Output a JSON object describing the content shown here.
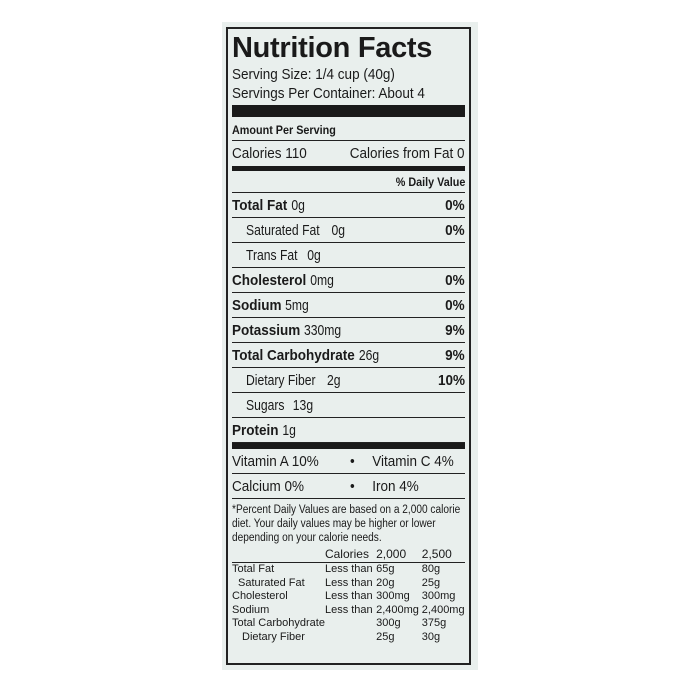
{
  "title": "Nutrition Facts",
  "serving_size": "Serving Size: 1/4 cup (40g)",
  "servings_per_container": "Servings Per Container: About 4",
  "amount_per_serving": "Amount Per Serving",
  "calories": "Calories 110",
  "calories_from_fat": "Calories from Fat 0",
  "daily_value_header": "% Daily Value",
  "nutrients": [
    {
      "name": "Total Fat",
      "amount": "0g",
      "dv": "0%",
      "bold": true,
      "indent": false
    },
    {
      "name": "Saturated Fat",
      "amount": "0g",
      "dv": "0%",
      "bold": false,
      "indent": true
    },
    {
      "name": "Trans Fat",
      "amount": "0g",
      "dv": "",
      "bold": false,
      "indent": true
    },
    {
      "name": "Cholesterol",
      "amount": "0mg",
      "dv": "0%",
      "bold": true,
      "indent": false
    },
    {
      "name": "Sodium",
      "amount": "5mg",
      "dv": "0%",
      "bold": true,
      "indent": false
    },
    {
      "name": "Potassium",
      "amount": "330mg",
      "dv": "9%",
      "bold": true,
      "indent": false
    },
    {
      "name": "Total Carbohydrate",
      "amount": "26g",
      "dv": "9%",
      "bold": true,
      "indent": false
    },
    {
      "name": "Dietary Fiber",
      "amount": "2g",
      "dv": "10%",
      "bold": false,
      "indent": true
    },
    {
      "name": "Sugars",
      "amount": "13g",
      "dv": "",
      "bold": false,
      "indent": true
    },
    {
      "name": "Protein",
      "amount": "1g",
      "dv": "",
      "bold": true,
      "indent": false
    }
  ],
  "vitamins": [
    {
      "left": "Vitamin A 10%",
      "right": "Vitamin C 4%"
    },
    {
      "left": "Calcium 0%",
      "right": "Iron 4%"
    }
  ],
  "bullet": "•",
  "footnote": "*Percent Daily Values are based on a 2,000 calorie diet. Your daily values may be higher or lower depending on your calorie needs.",
  "dv_table": {
    "header": [
      "",
      "Calories",
      "2,000",
      "2,500"
    ],
    "rows": [
      [
        "Total Fat",
        "Less than",
        "65g",
        "80g"
      ],
      [
        "Saturated Fat",
        "Less than",
        "20g",
        "25g"
      ],
      [
        "Cholesterol",
        "Less than",
        "300mg",
        "300mg"
      ],
      [
        "Sodium",
        "Less than",
        "2,400mg",
        "2,400mg"
      ],
      [
        "Total Carbohydrate",
        "",
        "300g",
        "375g"
      ],
      [
        "Dietary Fiber",
        "",
        "25g",
        "30g"
      ]
    ]
  }
}
